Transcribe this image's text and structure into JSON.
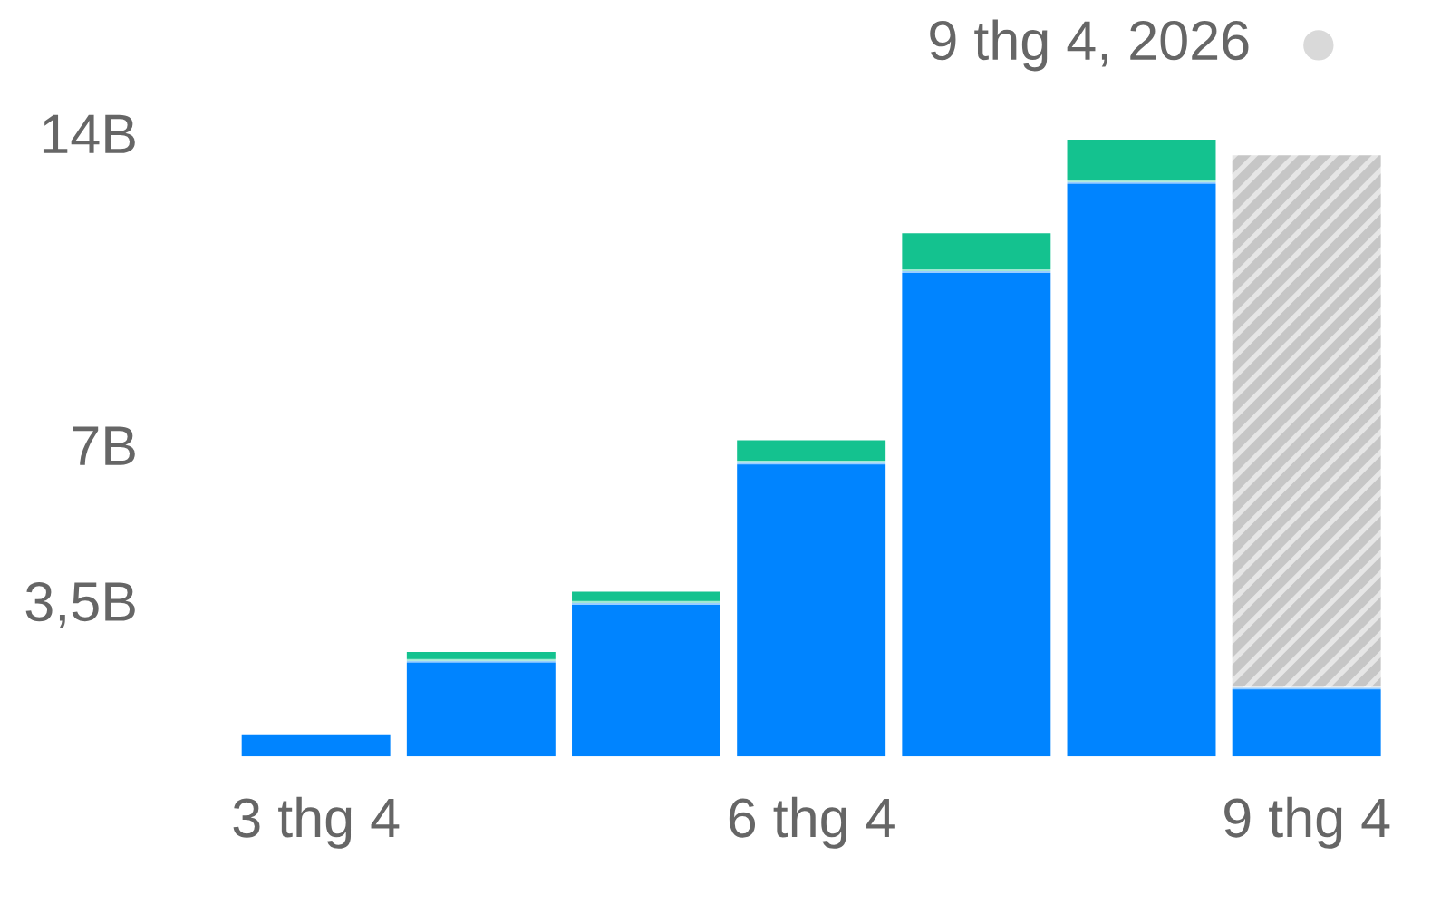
{
  "chart_data": {
    "type": "bar",
    "stacked": true,
    "categories": [
      "3 thg 4",
      null,
      null,
      "6 thg 4",
      null,
      null,
      "9 thg 4"
    ],
    "series": [
      {
        "color": "#0084ff",
        "values": [
          0.5,
          2.15,
          3.45,
          6.6,
          10.9,
          12.9,
          1.55
        ]
      },
      {
        "color": "#14c28f",
        "values": [
          0,
          0.2,
          0.25,
          0.5,
          0.85,
          0.95,
          null
        ]
      },
      {
        "color": "#c6c6c6",
        "values": [
          null,
          null,
          null,
          null,
          null,
          null,
          11.95
        ]
      }
    ],
    "ylim": [
      0,
      14
    ],
    "yticks": [
      {
        "value": 3.5,
        "label": "3,5B"
      },
      {
        "value": 7,
        "label": "7B"
      },
      {
        "value": 14,
        "label": "14B"
      }
    ],
    "grid": false,
    "legend": false,
    "annotations": [
      "9 thg 4, 2026"
    ]
  }
}
